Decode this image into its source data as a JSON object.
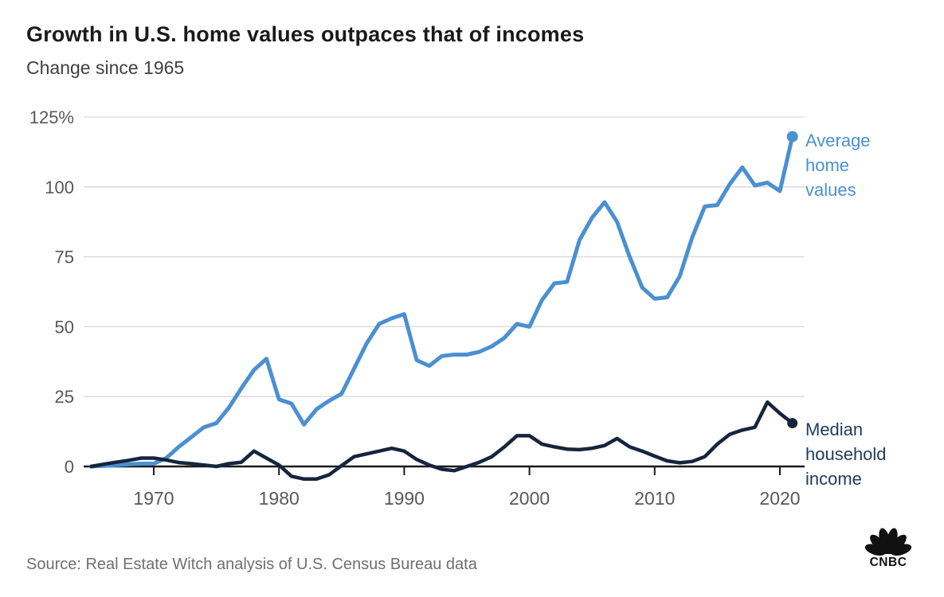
{
  "header": {
    "title": "Growth in U.S. home values outpaces that of incomes",
    "subtitle": "Change since 1965"
  },
  "footer": {
    "source": "Source: Real Estate Witch analysis of U.S. Census Bureau data",
    "logo_text": "CNBC"
  },
  "colors": {
    "home_values_line": "#4a90d2",
    "home_values_label": "#4a90d2",
    "income_line": "#16253e",
    "income_label": "#1e3b5d",
    "gridline": "#d9d9d9",
    "axis_line": "#1a1a1a",
    "tick_label": "#57585a",
    "title_text": "#1a1a1a",
    "subtitle_text": "#404040",
    "source_text": "#6e6f71",
    "logo": "#111111"
  },
  "chart_data": {
    "type": "line",
    "title": "Growth in U.S. home values outpaces that of incomes",
    "subtitle": "Change since 1965",
    "grid": "horizontal",
    "legend_position": "right of line ends",
    "x": [
      1965,
      1966,
      1967,
      1968,
      1969,
      1970,
      1971,
      1972,
      1973,
      1974,
      1975,
      1976,
      1977,
      1978,
      1979,
      1980,
      1981,
      1982,
      1983,
      1984,
      1985,
      1986,
      1987,
      1988,
      1989,
      1990,
      1991,
      1992,
      1993,
      1994,
      1995,
      1996,
      1997,
      1998,
      1999,
      2000,
      2001,
      2002,
      2003,
      2004,
      2005,
      2006,
      2007,
      2008,
      2009,
      2010,
      2011,
      2012,
      2013,
      2014,
      2015,
      2016,
      2017,
      2018,
      2019,
      2020,
      2021
    ],
    "series": [
      {
        "name": "Average home values",
        "color": "#4a90d2",
        "values": [
          0,
          0.2,
          0.5,
          0.8,
          1,
          1,
          3,
          7,
          10.5,
          14,
          15.5,
          21,
          28,
          34.5,
          38.5,
          24,
          22.5,
          15,
          20.5,
          23.5,
          26,
          35,
          44,
          51,
          53,
          54.5,
          38,
          36,
          39.5,
          40,
          40,
          41,
          43,
          46,
          51,
          50,
          59.5,
          65.5,
          66,
          81,
          89,
          94.5,
          87.5,
          75,
          64,
          60,
          60.5,
          68,
          82,
          93,
          93.5,
          101,
          107,
          100.5,
          101.5,
          98.5,
          118
        ]
      },
      {
        "name": "Median household income",
        "color": "#16253e",
        "values": [
          0,
          0.8,
          1.5,
          2.2,
          3,
          3,
          2.3,
          1.4,
          1,
          0.5,
          0,
          1,
          1.5,
          5.5,
          3,
          0.5,
          -3.5,
          -4.5,
          -4.5,
          -3,
          0.3,
          3.5,
          4.5,
          5.5,
          6.5,
          5.5,
          2.5,
          0.5,
          -1,
          -1.5,
          0,
          1.5,
          3.5,
          7,
          11,
          11,
          8,
          7,
          6.2,
          6,
          6.5,
          7.5,
          10,
          7,
          5.5,
          3.7,
          2,
          1.3,
          1.8,
          3.5,
          8,
          11.5,
          13,
          14,
          23,
          19,
          15.5
        ]
      }
    ],
    "ylim": [
      -6,
      130
    ],
    "xlim": [
      1965,
      2021
    ],
    "ylabel": "Change since 1965 (%)",
    "xlabel": "",
    "yticks": [
      {
        "value": 125,
        "label": "125%"
      },
      {
        "value": 100,
        "label": "100"
      },
      {
        "value": 75,
        "label": "75"
      },
      {
        "value": 50,
        "label": "50"
      },
      {
        "value": 25,
        "label": "25"
      },
      {
        "value": 0,
        "label": "0"
      }
    ],
    "xticks": [
      {
        "value": 1970,
        "label": "1970"
      },
      {
        "value": 1980,
        "label": "1980"
      },
      {
        "value": 1990,
        "label": "1990"
      },
      {
        "value": 2000,
        "label": "2000"
      },
      {
        "value": 2010,
        "label": "2010"
      },
      {
        "value": 2020,
        "label": "2020"
      }
    ]
  }
}
